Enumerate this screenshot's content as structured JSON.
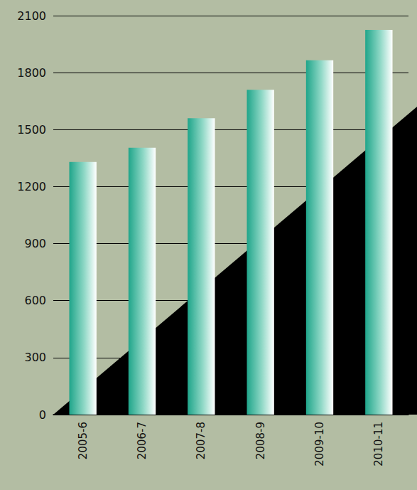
{
  "chart_data": {
    "type": "bar",
    "categories": [
      "2005-6",
      "2006-7",
      "2007-8",
      "2008-9",
      "2009-10",
      "2010-11"
    ],
    "values": [
      1330,
      1405,
      1560,
      1710,
      1865,
      2025
    ],
    "color": "#1fa58a",
    "ylim": [
      0,
      2100
    ],
    "yticks": [
      0,
      300,
      600,
      900,
      1200,
      1500,
      1800,
      2100
    ],
    "grid": true
  }
}
